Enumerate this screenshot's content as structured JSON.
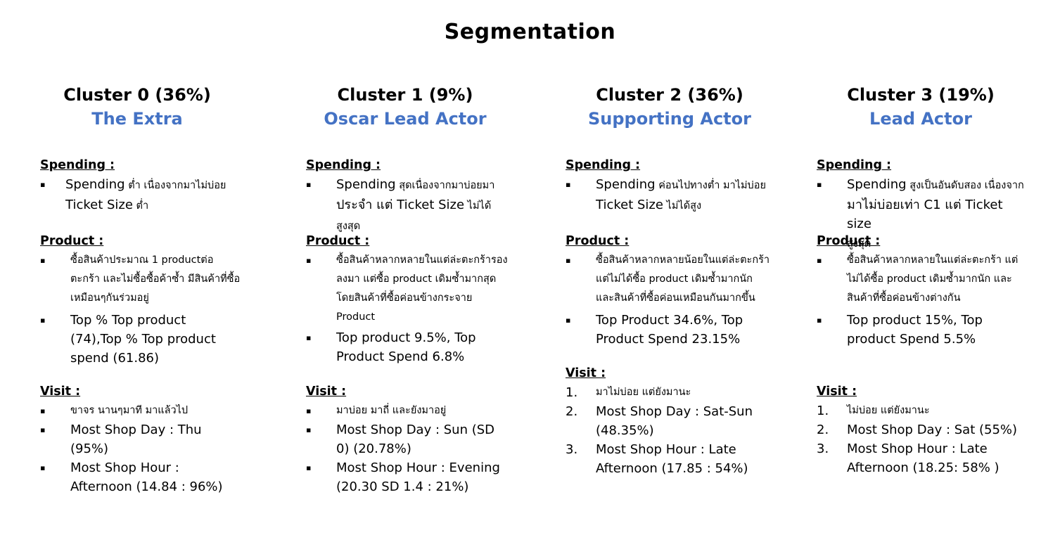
{
  "title": "Segmentation",
  "clusters": [
    {
      "name": "Cluster 0 (36%)",
      "persona": "The Extra",
      "spending_title": "Spending :",
      "spending": [
        {
          "lead": "Spending",
          "rest": " ต่ำ เนื่องจากมาไม่บ่อย",
          "line2": "Ticket Size",
          "line2_rest": " ต่ำ"
        }
      ],
      "product_title": "Product :",
      "product": [
        "ซื้อสินค้าประมาณ 1 productต่อตะกร้า และไม่ซื้อซื้อค้าซ้ำ มีสินค้าที่ซื้อเหมือนๆกันร่วมอยู่",
        "Top % Top product (74),Top % Top product spend (61.86)"
      ],
      "visit_title": "Visit :",
      "visit": [
        "ขาจร นานๆมาที มาแล้วไป",
        "Most Shop Day : Thu (95%)",
        "Most Shop Hour : Afternoon (14.84 : 96%)"
      ]
    },
    {
      "name": "Cluster 1 (9%)",
      "persona": "Oscar Lead Actor",
      "spending_title": "Spending :",
      "spending": [
        {
          "lead": "Spending",
          "rest": " สุดเนื่องจากมาบ่อยมา",
          "line2": "ประจำ แต่ Ticket Size",
          "line2_rest": " ไม่ได้สูงสุด"
        }
      ],
      "product_title": "Product :",
      "product": [
        "ซื้อสินค้าหลากหลายในแต่ล่ะตะกร้ารองลงมา แต่ซื้อ product เดิมซ้ำมากสุด โดยสินค้าที่ซื้อค่อนข้างกระจาย Product",
        "Top product 9.5%, Top Product Spend 6.8%"
      ],
      "visit_title": "Visit :",
      "visit": [
        "มาบ่อย มาถี่ และยังมาอยู่",
        "Most Shop Day : Sun (SD 0) (20.78%)",
        "Most Shop Hour : Evening (20.30 SD 1.4 : 21%)"
      ]
    },
    {
      "name": "Cluster 2 (36%)",
      "persona": "Supporting Actor",
      "spending_title": "Spending :",
      "spending": [
        {
          "lead": "Spending",
          "rest": " ค่อนไปทางต่ำ มาไม่บ่อย",
          "line2": "Ticket Size",
          "line2_rest": " ไม่ได้สูง"
        }
      ],
      "product_title": "Product :",
      "product": [
        "ซื้อสินค้าหลากหลายน้อยในแต่ล่ะตะกร้า แต่ไม่ได้ซื้อ product เดิมซ้ำมากนัก และสินค้าที่ซื้อค่อนเหมือนกันมากขึ้น",
        "Top Product 34.6%, Top Product Spend 23.15%"
      ],
      "visit_title": "Visit :",
      "visit": [
        "มาไม่บ่อย แต่ยังมานะ",
        "Most Shop Day : Sat-Sun (48.35%)",
        "Most Shop Hour : Late Afternoon (17.85 : 54%)"
      ]
    },
    {
      "name": "Cluster 3 (19%)",
      "persona": "Lead Actor",
      "spending_title": "Spending :",
      "spending": [
        {
          "lead": "Spending",
          "rest": " สูงเป็นอันดับสอง เนื่องจาก",
          "line2": "มาไม่บ่อยเท่า C1 แต่ Ticket size",
          "line2_rest": "",
          "line3": "สูงสุด"
        }
      ],
      "product_title": "Product :",
      "product": [
        "ซื้อสินค้าหลากหลายในแต่ล่ะตะกร้า แต่ไม่ได้ซื้อ product เดิมซ้ำมากนัก และสินค้าที่ซื้อค่อนข้างต่างกัน",
        "Top product 15%, Top product Spend 5.5%"
      ],
      "visit_title": "Visit :",
      "visit": [
        "ไม่บ่อย แต่ยังมานะ",
        "Most Shop Day : Sat (55%)",
        "Most Shop Hour : Late Afternoon (18.25: 58% )"
      ]
    }
  ],
  "markers": {
    "square": "▪",
    "n1": "1.",
    "n2": "2.",
    "n3": "3."
  }
}
